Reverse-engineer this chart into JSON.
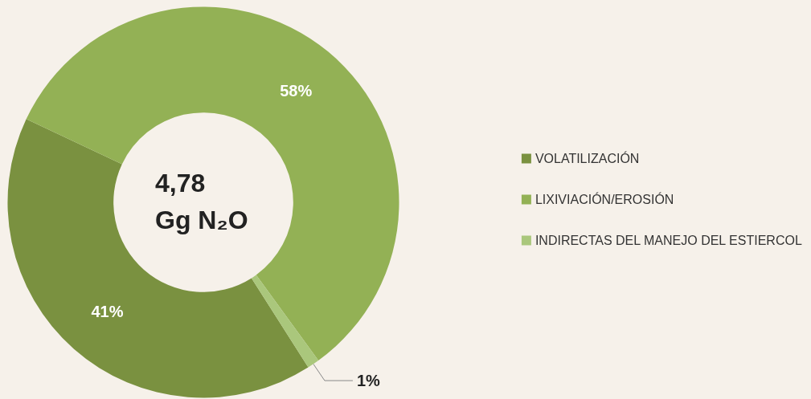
{
  "chart_data": {
    "type": "donut",
    "categories": [
      "VOLATILIZACIÓN",
      "LIXIVIACIÓN/EROSIÓN",
      "INDIRECTAS DEL MANEJO DEL ESTIERCOL"
    ],
    "values": [
      41,
      58,
      1
    ],
    "colors": [
      "#7a9140",
      "#93b155",
      "#aac77c"
    ],
    "value_labels": [
      "41%",
      "58%",
      "1%"
    ],
    "annotations": [
      "4,78",
      "Gg N₂O"
    ],
    "legend": "right"
  }
}
